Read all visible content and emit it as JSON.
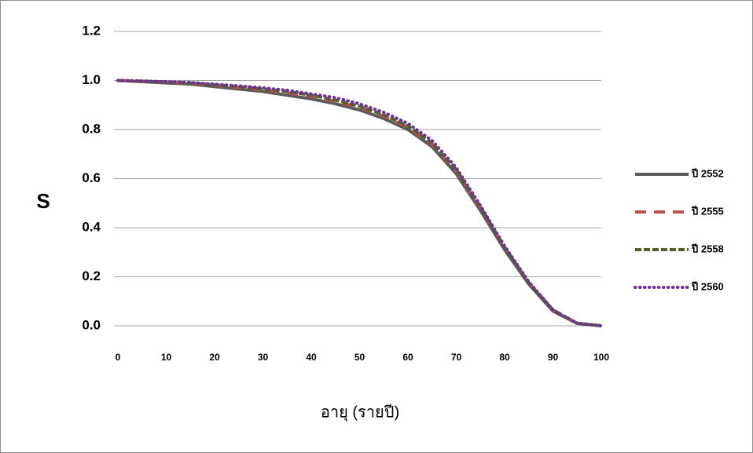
{
  "chart_data": {
    "type": "line",
    "x_label": "อายุ (รายปี)",
    "y_label": "S",
    "x": [
      0,
      5,
      10,
      15,
      20,
      25,
      30,
      35,
      40,
      45,
      50,
      55,
      60,
      65,
      70,
      75,
      80,
      85,
      90,
      95,
      100
    ],
    "series": [
      {
        "name": "ปี 2552",
        "color": "#595959",
        "dash": "solid",
        "values": [
          1.0,
          0.995,
          0.99,
          0.985,
          0.975,
          0.965,
          0.955,
          0.94,
          0.925,
          0.905,
          0.88,
          0.845,
          0.8,
          0.73,
          0.62,
          0.47,
          0.31,
          0.17,
          0.06,
          0.01,
          0.0
        ]
      },
      {
        "name": "ปี 2555",
        "color": "#c0504d",
        "dash": "long-dash",
        "values": [
          1.0,
          0.997,
          0.993,
          0.988,
          0.98,
          0.972,
          0.962,
          0.95,
          0.935,
          0.915,
          0.89,
          0.855,
          0.81,
          0.74,
          0.63,
          0.48,
          0.32,
          0.175,
          0.065,
          0.01,
          0.0
        ]
      },
      {
        "name": "ปี 2558",
        "color": "#4f6228",
        "dash": "dash",
        "values": [
          1.0,
          0.997,
          0.994,
          0.99,
          0.982,
          0.975,
          0.965,
          0.955,
          0.94,
          0.92,
          0.895,
          0.86,
          0.815,
          0.745,
          0.635,
          0.485,
          0.32,
          0.175,
          0.065,
          0.01,
          0.0
        ]
      },
      {
        "name": "ปี 2560",
        "color": "#7030a0",
        "dash": "dot",
        "values": [
          1.0,
          0.998,
          0.995,
          0.992,
          0.985,
          0.978,
          0.97,
          0.96,
          0.945,
          0.93,
          0.905,
          0.87,
          0.825,
          0.755,
          0.645,
          0.49,
          0.325,
          0.18,
          0.065,
          0.01,
          0.0
        ]
      }
    ],
    "xlim": [
      0,
      100
    ],
    "xticks": [
      0,
      10,
      20,
      30,
      40,
      50,
      60,
      70,
      80,
      90,
      100
    ],
    "ylim": [
      0,
      1.2
    ],
    "yticks": [
      {
        "value": 0,
        "label": "0.0"
      },
      0.2,
      0.4,
      0.6,
      0.8,
      {
        "value": 1,
        "label": "1.0"
      },
      1.2
    ],
    "grid": true,
    "legend": "right"
  }
}
